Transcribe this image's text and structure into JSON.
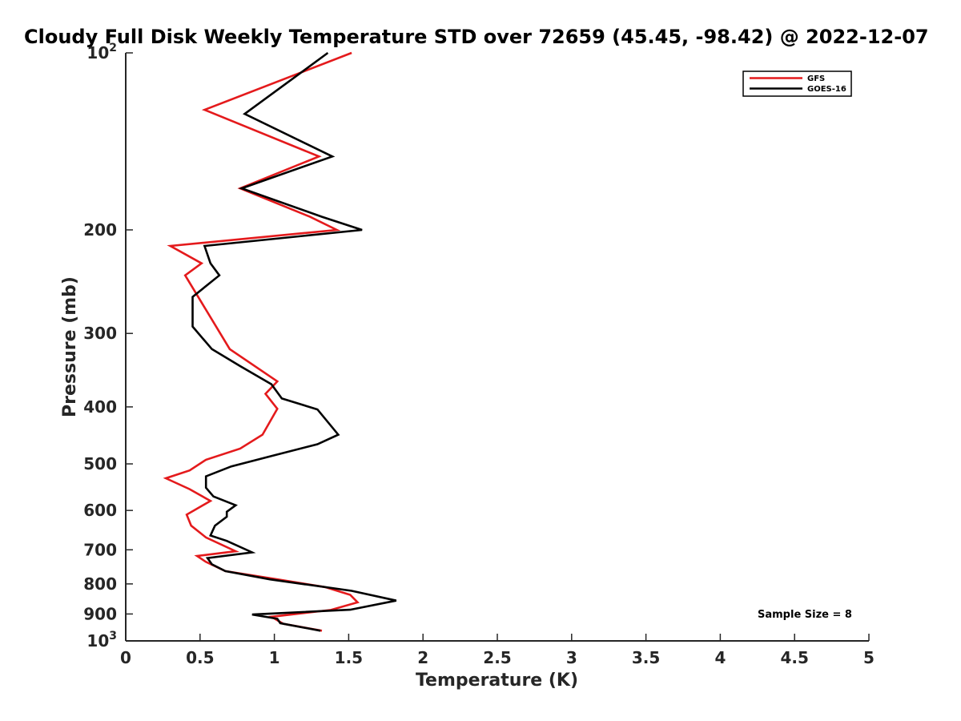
{
  "chart_data": {
    "type": "line",
    "title": "Cloudy Full Disk Weekly Temperature STD over 72659 (45.45, -98.42) @ 2022-12-07",
    "xlabel": "Temperature (K)",
    "ylabel": "Pressure (mb)",
    "xlim": [
      0,
      5
    ],
    "ylim": [
      100,
      1000
    ],
    "y_scale": "log",
    "y_reversed": true,
    "x_ticks": [
      "0",
      "0.5",
      "1",
      "1.5",
      "2",
      "2.5",
      "3",
      "3.5",
      "4",
      "4.5",
      "5"
    ],
    "y_ticks": [
      {
        "value": 100,
        "base": "10",
        "exp": "2"
      },
      {
        "value": 200,
        "label": "200"
      },
      {
        "value": 300,
        "label": "300"
      },
      {
        "value": 400,
        "label": "400"
      },
      {
        "value": 500,
        "label": "500"
      },
      {
        "value": 600,
        "label": "600"
      },
      {
        "value": 700,
        "label": "700"
      },
      {
        "value": 800,
        "label": "800"
      },
      {
        "value": 900,
        "label": "900"
      },
      {
        "value": 1000,
        "base": "10",
        "exp": "3"
      }
    ],
    "grid": false,
    "legend_position": "top-right",
    "annotation": "Sample Size = 8",
    "series": [
      {
        "name": "GFS",
        "color": "#e41a1c",
        "points": [
          [
            1.52,
            100
          ],
          [
            0.53,
            125
          ],
          [
            1.3,
            150
          ],
          [
            0.77,
            170
          ],
          [
            1.24,
            190
          ],
          [
            1.42,
            200
          ],
          [
            0.3,
            213
          ],
          [
            0.51,
            228
          ],
          [
            0.4,
            239
          ],
          [
            0.7,
            319
          ],
          [
            1.02,
            362
          ],
          [
            0.94,
            380
          ],
          [
            1.02,
            403
          ],
          [
            0.92,
            446
          ],
          [
            0.77,
            471
          ],
          [
            0.54,
            492
          ],
          [
            0.43,
            513
          ],
          [
            0.27,
            529
          ],
          [
            0.43,
            552
          ],
          [
            0.57,
            578
          ],
          [
            0.41,
            610
          ],
          [
            0.44,
            637
          ],
          [
            0.54,
            667
          ],
          [
            0.74,
            704
          ],
          [
            0.48,
            717
          ],
          [
            0.54,
            734
          ],
          [
            0.67,
            761
          ],
          [
            1.02,
            786
          ],
          [
            1.34,
            810
          ],
          [
            1.51,
            835
          ],
          [
            1.56,
            860
          ],
          [
            1.38,
            886
          ],
          [
            0.98,
            910
          ],
          [
            1.06,
            935
          ],
          [
            1.32,
            961
          ]
        ]
      },
      {
        "name": "GOES-16",
        "color": "#000000",
        "points": [
          [
            1.36,
            100
          ],
          [
            0.8,
            127
          ],
          [
            1.39,
            150
          ],
          [
            0.78,
            170
          ],
          [
            1.32,
            190
          ],
          [
            1.59,
            200
          ],
          [
            0.53,
            213
          ],
          [
            0.57,
            228
          ],
          [
            0.63,
            239
          ],
          [
            0.45,
            260
          ],
          [
            0.45,
            292
          ],
          [
            0.58,
            319
          ],
          [
            0.77,
            341
          ],
          [
            0.98,
            366
          ],
          [
            1.05,
            387
          ],
          [
            1.29,
            404
          ],
          [
            1.43,
            446
          ],
          [
            1.29,
            463
          ],
          [
            0.98,
            485
          ],
          [
            0.71,
            505
          ],
          [
            0.54,
            525
          ],
          [
            0.54,
            549
          ],
          [
            0.59,
            568
          ],
          [
            0.74,
            588
          ],
          [
            0.68,
            603
          ],
          [
            0.68,
            615
          ],
          [
            0.6,
            637
          ],
          [
            0.57,
            662
          ],
          [
            0.68,
            676
          ],
          [
            0.85,
            707
          ],
          [
            0.55,
            723
          ],
          [
            0.58,
            741
          ],
          [
            0.67,
            761
          ],
          [
            0.97,
            786
          ],
          [
            1.52,
            822
          ],
          [
            1.82,
            854
          ],
          [
            1.51,
            885
          ],
          [
            0.85,
            902
          ],
          [
            1.02,
            917
          ],
          [
            1.04,
            933
          ],
          [
            1.31,
            961
          ]
        ]
      }
    ]
  }
}
